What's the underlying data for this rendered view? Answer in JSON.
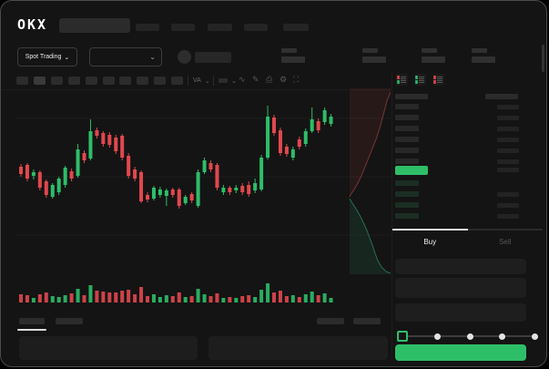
{
  "brand": {
    "logo_text": "OKX"
  },
  "header": {
    "search": {
      "placeholder": ""
    },
    "nav_skeleton_count": 5
  },
  "market_bar": {
    "mode_dropdown_label": "Spot Trading",
    "chevron": "⌄",
    "stat_group_count": 4
  },
  "toolbar": {
    "interval_button_count": 10,
    "active_interval_index": 1,
    "scale_label": "VA",
    "icons": [
      "wave-icon",
      "brush-icon",
      "camera-icon",
      "gear-icon",
      "expand-icon"
    ]
  },
  "chart_data": {
    "type": "candlestick",
    "title": "",
    "grid_on": true,
    "gridline_levels": [
      163,
      99,
      35
    ],
    "colors": {
      "up": "#2ebd69",
      "down": "#e0484e",
      "grid": "#1d1d1d"
    },
    "candles": [
      {
        "o": 110,
        "h": 113,
        "l": 99,
        "c": 102
      },
      {
        "o": 112,
        "h": 114,
        "l": 94,
        "c": 97
      },
      {
        "o": 100,
        "h": 107,
        "l": 96,
        "c": 104
      },
      {
        "o": 104,
        "h": 106,
        "l": 84,
        "c": 87
      },
      {
        "o": 94,
        "h": 96,
        "l": 76,
        "c": 79
      },
      {
        "o": 77,
        "h": 92,
        "l": 75,
        "c": 90
      },
      {
        "o": 82,
        "h": 99,
        "l": 79,
        "c": 97
      },
      {
        "o": 90,
        "h": 111,
        "l": 87,
        "c": 109
      },
      {
        "o": 105,
        "h": 108,
        "l": 94,
        "c": 97
      },
      {
        "o": 100,
        "h": 135,
        "l": 98,
        "c": 129
      },
      {
        "o": 125,
        "h": 128,
        "l": 114,
        "c": 117
      },
      {
        "o": 119,
        "h": 162,
        "l": 117,
        "c": 149
      },
      {
        "o": 150,
        "h": 153,
        "l": 141,
        "c": 144
      },
      {
        "o": 147,
        "h": 149,
        "l": 132,
        "c": 135
      },
      {
        "o": 145,
        "h": 148,
        "l": 131,
        "c": 134
      },
      {
        "o": 142,
        "h": 145,
        "l": 124,
        "c": 127
      },
      {
        "o": 144,
        "h": 146,
        "l": 117,
        "c": 120
      },
      {
        "o": 122,
        "h": 125,
        "l": 97,
        "c": 100
      },
      {
        "o": 107,
        "h": 110,
        "l": 94,
        "c": 97
      },
      {
        "o": 104,
        "h": 106,
        "l": 70,
        "c": 72
      },
      {
        "o": 79,
        "h": 82,
        "l": 71,
        "c": 74
      },
      {
        "o": 75,
        "h": 89,
        "l": 73,
        "c": 87
      },
      {
        "o": 79,
        "h": 88,
        "l": 76,
        "c": 85
      },
      {
        "o": 78,
        "h": 86,
        "l": 67,
        "c": 84
      },
      {
        "o": 85,
        "h": 87,
        "l": 76,
        "c": 79
      },
      {
        "o": 85,
        "h": 87,
        "l": 64,
        "c": 67
      },
      {
        "o": 70,
        "h": 79,
        "l": 68,
        "c": 77
      },
      {
        "o": 80,
        "h": 82,
        "l": 70,
        "c": 73
      },
      {
        "o": 67,
        "h": 107,
        "l": 65,
        "c": 104
      },
      {
        "o": 104,
        "h": 120,
        "l": 102,
        "c": 117
      },
      {
        "o": 114,
        "h": 117,
        "l": 104,
        "c": 107
      },
      {
        "o": 112,
        "h": 114,
        "l": 84,
        "c": 87
      },
      {
        "o": 82,
        "h": 90,
        "l": 79,
        "c": 87
      },
      {
        "o": 87,
        "h": 89,
        "l": 79,
        "c": 82
      },
      {
        "o": 84,
        "h": 90,
        "l": 81,
        "c": 87
      },
      {
        "o": 89,
        "h": 92,
        "l": 79,
        "c": 82
      },
      {
        "o": 90,
        "h": 94,
        "l": 77,
        "c": 80
      },
      {
        "o": 84,
        "h": 97,
        "l": 81,
        "c": 92
      },
      {
        "o": 85,
        "h": 123,
        "l": 83,
        "c": 120
      },
      {
        "o": 120,
        "h": 177,
        "l": 118,
        "c": 165
      },
      {
        "o": 164,
        "h": 167,
        "l": 144,
        "c": 147
      },
      {
        "o": 150,
        "h": 153,
        "l": 122,
        "c": 125
      },
      {
        "o": 132,
        "h": 135,
        "l": 121,
        "c": 124
      },
      {
        "o": 120,
        "h": 132,
        "l": 117,
        "c": 129
      },
      {
        "o": 140,
        "h": 143,
        "l": 129,
        "c": 132
      },
      {
        "o": 135,
        "h": 152,
        "l": 132,
        "c": 149
      },
      {
        "o": 149,
        "h": 175,
        "l": 147,
        "c": 162
      },
      {
        "o": 160,
        "h": 163,
        "l": 147,
        "c": 150
      },
      {
        "o": 159,
        "h": 175,
        "l": 156,
        "c": 172
      },
      {
        "o": 157,
        "h": 168,
        "l": 154,
        "c": 165
      }
    ],
    "volume": [
      9,
      8,
      5,
      9,
      11,
      7,
      6,
      8,
      10,
      15,
      8,
      19,
      13,
      12,
      11,
      11,
      13,
      14,
      9,
      17,
      7,
      9,
      6,
      8,
      7,
      11,
      6,
      7,
      15,
      9,
      7,
      10,
      5,
      6,
      5,
      7,
      8,
      6,
      14,
      21,
      11,
      13,
      7,
      8,
      6,
      9,
      12,
      8,
      10,
      5
    ]
  },
  "depth": {
    "ask_fill": "rgba(150,55,55,0.16)",
    "ask_line": "rgba(190,80,80,0.55)",
    "bid_fill": "rgba(40,150,90,0.14)",
    "bid_line": "rgba(60,190,150,0.5)"
  },
  "order_book": {
    "view_icons": [
      "book-combined-icon",
      "book-bids-icon",
      "book-asks-icon"
    ],
    "ask_row_count": 6,
    "bid_row_count": 4,
    "price_highlight_color": "#2fbe68",
    "ask_color": "#e0484e",
    "bid_color": "#2ebd69"
  },
  "trade_form": {
    "tabs": [
      {
        "label": "Buy",
        "active": true
      },
      {
        "label": "Sell",
        "active": false
      }
    ],
    "field_count": 3,
    "slider": {
      "stop_count": 5,
      "active_stop": 0
    },
    "submit": {
      "label": "",
      "color": "#2fbe68"
    }
  },
  "bottom_bar": {
    "left_tab_count": 2,
    "right_tab_count": 2,
    "panel_count": 2
  }
}
